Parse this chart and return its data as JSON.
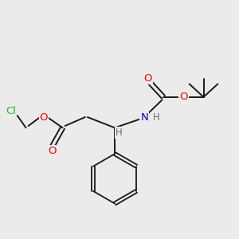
{
  "background_color": "#ebebeb",
  "bond_color": "#1a1a1a",
  "atom_colors": {
    "O": "#ff0000",
    "N": "#0000cc",
    "Cl": "#22bb22",
    "H": "#6a6a6a",
    "C": "#1a1a1a"
  },
  "figsize": [
    3.0,
    3.0
  ],
  "dpi": 100
}
